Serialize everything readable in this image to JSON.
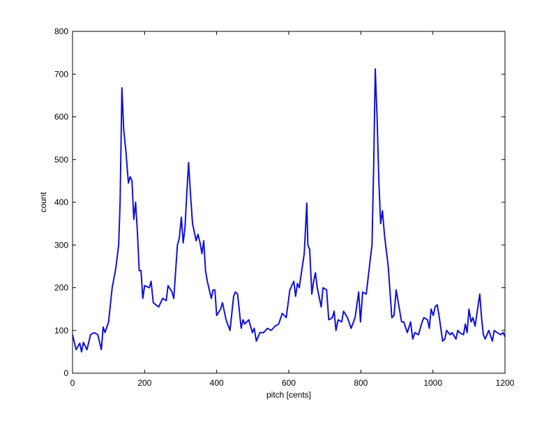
{
  "chart_data": {
    "type": "line",
    "xlabel": "pitch [cents]",
    "ylabel": "count",
    "xlim": [
      0,
      1200
    ],
    "ylim": [
      0,
      800
    ],
    "xticks": [
      0,
      200,
      400,
      600,
      800,
      1000,
      1200
    ],
    "yticks": [
      0,
      100,
      200,
      300,
      400,
      500,
      600,
      700,
      800
    ],
    "grid": false,
    "x": [
      0,
      10,
      20,
      25,
      30,
      40,
      50,
      60,
      70,
      80,
      85,
      90,
      100,
      110,
      120,
      128,
      132,
      137,
      142,
      148,
      155,
      160,
      165,
      170,
      175,
      180,
      185,
      190,
      195,
      200,
      213,
      218,
      224,
      239,
      250,
      260,
      265,
      276,
      281,
      291,
      296,
      302,
      307,
      312,
      317,
      322,
      328,
      333,
      343,
      348,
      354,
      359,
      364,
      369,
      374,
      385,
      390,
      395,
      400,
      411,
      416,
      426,
      437,
      447,
      452,
      458,
      468,
      473,
      478,
      489,
      499,
      504,
      510,
      520,
      530,
      541,
      551,
      562,
      572,
      582,
      593,
      603,
      614,
      619,
      624,
      629,
      643,
      650,
      653,
      658,
      664,
      669,
      674,
      679,
      690,
      695,
      705,
      711,
      721,
      726,
      731,
      737,
      747,
      752,
      763,
      773,
      784,
      794,
      799,
      805,
      815,
      826,
      831,
      836,
      840,
      845,
      850,
      855,
      860,
      866,
      876,
      886,
      892,
      898,
      903,
      913,
      919,
      929,
      938,
      944,
      950,
      960,
      970,
      975,
      985,
      990,
      995,
      1001,
      1006,
      1012,
      1017,
      1027,
      1033,
      1038,
      1048,
      1053,
      1064,
      1069,
      1074,
      1085,
      1090,
      1095,
      1100,
      1106,
      1111,
      1117,
      1130,
      1135,
      1140,
      1145,
      1155,
      1165,
      1170,
      1178,
      1188,
      1195,
      1200
    ],
    "series": [
      {
        "name": "count",
        "color": "#1010d8",
        "values": [
          90,
          55,
          70,
          50,
          72,
          55,
          90,
          95,
          90,
          55,
          108,
          95,
          120,
          200,
          245,
          300,
          400,
          668,
          570,
          520,
          445,
          460,
          450,
          360,
          400,
          330,
          240,
          240,
          175,
          205,
          200,
          215,
          165,
          155,
          175,
          170,
          205,
          190,
          175,
          300,
          315,
          365,
          305,
          340,
          420,
          493,
          410,
          350,
          310,
          325,
          305,
          280,
          310,
          240,
          215,
          175,
          195,
          195,
          135,
          150,
          165,
          125,
          100,
          180,
          190,
          185,
          105,
          125,
          115,
          125,
          95,
          105,
          75,
          95,
          95,
          105,
          100,
          110,
          115,
          140,
          130,
          195,
          215,
          180,
          210,
          200,
          280,
          398,
          300,
          290,
          185,
          215,
          235,
          200,
          155,
          200,
          195,
          125,
          130,
          145,
          100,
          125,
          120,
          145,
          130,
          105,
          130,
          190,
          120,
          190,
          185,
          265,
          300,
          500,
          712,
          600,
          450,
          350,
          380,
          320,
          250,
          130,
          135,
          195,
          170,
          120,
          120,
          95,
          120,
          80,
          95,
          90,
          120,
          130,
          125,
          105,
          150,
          135,
          155,
          160,
          135,
          75,
          80,
          100,
          90,
          95,
          80,
          100,
          95,
          90,
          115,
          95,
          150,
          120,
          130,
          110,
          185,
          130,
          90,
          80,
          100,
          75,
          100,
          95,
          90,
          95,
          85
        ]
      }
    ]
  }
}
